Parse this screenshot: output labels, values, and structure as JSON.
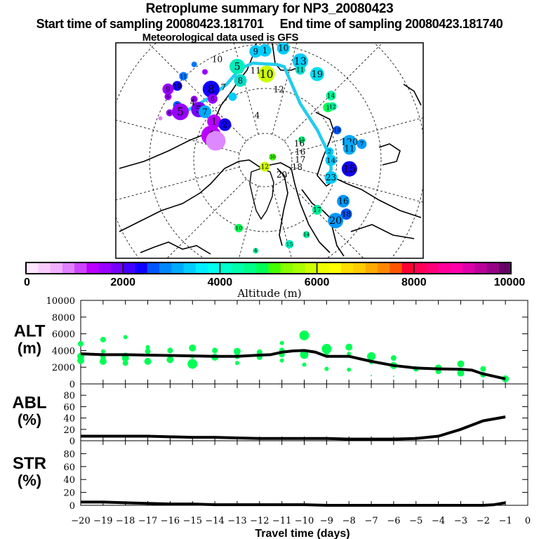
{
  "header": {
    "title": "Retroplume summary for NP3_20080423",
    "start_label": "Start time of sampling 20080423.181701",
    "end_label": "End time of sampling 20080423.181740",
    "met_label": "Meteorological data used is GFS"
  },
  "colorbar": {
    "label": "Altitude (m)",
    "ticks": [
      "0",
      "2000",
      "4000",
      "6000",
      "8000",
      "10000"
    ],
    "range": [
      0,
      10000
    ],
    "colors": [
      "#ffe6ff",
      "#f8ccff",
      "#f0b0ff",
      "#e080ff",
      "#cc44ff",
      "#bb00ff",
      "#9900ff",
      "#7700ff",
      "#4400ff",
      "#1100ff",
      "#0055ff",
      "#0088ff",
      "#00aaff",
      "#00ccff",
      "#00eeff",
      "#00ffee",
      "#00ffcc",
      "#00ffaa",
      "#00ff88",
      "#00ff55",
      "#44ff00",
      "#88ff00",
      "#aaff00",
      "#ccff00",
      "#eeff00",
      "#ffff00",
      "#ffdd00",
      "#ffcc00",
      "#ffaa00",
      "#ff8800",
      "#ff5500",
      "#ff0033",
      "#ff0055",
      "#ff0077",
      "#ff0099",
      "#ff00aa",
      "#dd00aa",
      "#bb0099",
      "#990088",
      "#660066"
    ]
  },
  "map": {
    "trajectory_color": "#22ccee",
    "labels": [
      {
        "text": "10",
        "ax": 0.33,
        "ay": 0.09
      },
      {
        "text": "11",
        "ax": 0.455,
        "ay": 0.142
      },
      {
        "text": "12",
        "ax": 0.53,
        "ay": 0.23
      },
      {
        "text": "7",
        "ax": 0.35,
        "ay": 0.22
      },
      {
        "text": "4",
        "ax": 0.46,
        "ay": 0.35
      },
      {
        "text": "16",
        "ax": 0.597,
        "ay": 0.48
      },
      {
        "text": "16",
        "ax": 0.6,
        "ay": 0.52
      },
      {
        "text": "17",
        "ax": 0.6,
        "ay": 0.555
      },
      {
        "text": "18",
        "ax": 0.59,
        "ay": 0.59
      },
      {
        "text": "20",
        "ax": 0.54,
        "ay": 0.625
      },
      {
        "text": "4",
        "ax": 0.25,
        "ay": 0.29
      }
    ],
    "markers": [
      {
        "text": "9",
        "x": 0.455,
        "y": 0.04,
        "r": 9,
        "c": "#00ccff"
      },
      {
        "text": "5",
        "x": 0.395,
        "y": 0.11,
        "r": 11,
        "c": "#00eebb"
      },
      {
        "text": "8",
        "x": 0.405,
        "y": 0.175,
        "r": 9,
        "c": "#00ddcc"
      },
      {
        "text": "10",
        "x": 0.49,
        "y": 0.145,
        "r": 12,
        "c": "#ccff00"
      },
      {
        "text": "13",
        "x": 0.6,
        "y": 0.085,
        "r": 11,
        "c": "#00ccff"
      },
      {
        "text": "11",
        "x": 0.6,
        "y": 0.125,
        "r": 7,
        "c": "#00ddcc"
      },
      {
        "text": "19",
        "x": 0.655,
        "y": 0.145,
        "r": 10,
        "c": "#00ddee"
      },
      {
        "text": "14",
        "x": 0.7,
        "y": 0.245,
        "r": 7,
        "c": "#00ff99"
      },
      {
        "text": "1",
        "x": 0.69,
        "y": 0.3,
        "r": 7,
        "c": "#00ff55"
      },
      {
        "text": "12",
        "x": 0.705,
        "y": 0.295,
        "r": 6,
        "c": "#00ee99"
      },
      {
        "text": "19",
        "x": 0.72,
        "y": 0.405,
        "r": 6,
        "c": "#0055ff"
      },
      {
        "text": "15",
        "x": 0.605,
        "y": 0.45,
        "r": 5,
        "c": "#00ff77"
      },
      {
        "text": "120",
        "x": 0.76,
        "y": 0.46,
        "r": 10,
        "c": "#00aaff"
      },
      {
        "text": "11",
        "x": 0.76,
        "y": 0.49,
        "r": 9,
        "c": "#00aaff"
      },
      {
        "text": "7",
        "x": 0.8,
        "y": 0.47,
        "r": 7,
        "c": "#0099ff"
      },
      {
        "text": "2",
        "x": 0.695,
        "y": 0.505,
        "r": 6,
        "c": "#00ccff"
      },
      {
        "text": "14",
        "x": 0.7,
        "y": 0.545,
        "r": 8,
        "c": "#00ccff"
      },
      {
        "text": "15",
        "x": 0.76,
        "y": 0.585,
        "r": 11,
        "c": "#1100ee"
      },
      {
        "text": "23",
        "x": 0.7,
        "y": 0.625,
        "r": 9,
        "c": "#00ccff"
      },
      {
        "text": "16",
        "x": 0.74,
        "y": 0.735,
        "r": 9,
        "c": "#0099ff"
      },
      {
        "text": "17",
        "x": 0.655,
        "y": 0.775,
        "r": 7,
        "c": "#00ee99"
      },
      {
        "text": "18",
        "x": 0.75,
        "y": 0.795,
        "r": 8,
        "c": "#0055ee"
      },
      {
        "text": "20",
        "x": 0.715,
        "y": 0.825,
        "r": 11,
        "c": "#0099ff"
      },
      {
        "text": "14",
        "x": 0.62,
        "y": 0.89,
        "r": 5,
        "c": "#00ee99"
      },
      {
        "text": "15",
        "x": 0.565,
        "y": 0.935,
        "r": 6,
        "c": "#00eebb"
      },
      {
        "text": "4",
        "x": 0.455,
        "y": 0.965,
        "r": 4,
        "c": "#00ee99"
      },
      {
        "text": "10",
        "x": 0.4,
        "y": 0.86,
        "r": 6,
        "c": "#00ff55"
      },
      {
        "text": "30",
        "x": 0.51,
        "y": 0.53,
        "r": 5,
        "c": "#44ff00"
      },
      {
        "text": "12",
        "x": 0.485,
        "y": 0.575,
        "r": 7,
        "c": "#ccff00"
      },
      {
        "text": "10",
        "x": 0.2,
        "y": 0.2,
        "r": 7,
        "c": "#1100ee"
      },
      {
        "text": "11",
        "x": 0.22,
        "y": 0.155,
        "r": 6,
        "c": "#0077ff"
      },
      {
        "text": "9",
        "x": 0.17,
        "y": 0.215,
        "r": 8,
        "c": "#9900ff"
      },
      {
        "text": "6",
        "x": 0.17,
        "y": 0.25,
        "r": 5,
        "c": "#9900ff"
      },
      {
        "text": "7",
        "x": 0.2,
        "y": 0.29,
        "r": 6,
        "c": "#0055ff"
      },
      {
        "text": "5",
        "x": 0.21,
        "y": 0.32,
        "r": 12,
        "c": "#9900ff"
      },
      {
        "text": "6",
        "x": 0.175,
        "y": 0.325,
        "r": 5,
        "c": "#9900ff"
      },
      {
        "text": "6",
        "x": 0.255,
        "y": 0.262,
        "r": 5,
        "c": "#9900ff"
      },
      {
        "text": "8",
        "x": 0.31,
        "y": 0.215,
        "r": 12,
        "c": "#1100ff"
      },
      {
        "text": "6",
        "x": 0.315,
        "y": 0.26,
        "r": 7,
        "c": "#9900ff"
      },
      {
        "text": "5",
        "x": 0.27,
        "y": 0.31,
        "r": 11,
        "c": "#7700ff"
      },
      {
        "text": "7",
        "x": 0.29,
        "y": 0.32,
        "r": 9,
        "c": "#00aaff"
      },
      {
        "text": "1",
        "x": 0.32,
        "y": 0.365,
        "r": 10,
        "c": "#bb00ff"
      },
      {
        "text": "2",
        "x": 0.355,
        "y": 0.38,
        "r": 9,
        "c": "#1100ee"
      },
      {
        "text": "4",
        "x": 0.31,
        "y": 0.43,
        "r": 14,
        "c": "#bb00ff"
      },
      {
        "text": "",
        "x": 0.325,
        "y": 0.455,
        "r": 14,
        "c": "#dd88ff"
      },
      {
        "text": "",
        "x": 0.255,
        "y": 0.1,
        "r": 4,
        "c": "#0077ff"
      },
      {
        "text": "",
        "x": 0.29,
        "y": 0.135,
        "r": 4,
        "c": "#9900ff"
      },
      {
        "text": "",
        "x": 0.38,
        "y": 0.25,
        "r": 6,
        "c": "#00ccff"
      },
      {
        "text": "",
        "x": 0.145,
        "y": 0.35,
        "r": 3,
        "c": "#e080ff"
      },
      {
        "text": "1",
        "x": 0.485,
        "y": 0.035,
        "r": 9,
        "c": "#00ccff"
      },
      {
        "text": "10",
        "x": 0.545,
        "y": 0.025,
        "r": 9,
        "c": "#00ccff"
      }
    ]
  },
  "chart_data": [
    {
      "type": "scatter+line",
      "panel": "ALT",
      "ylabel": "ALT\n(m)",
      "ylabel_lines": [
        "ALT",
        "(m)"
      ],
      "ylim": [
        0,
        10000
      ],
      "yticks": [
        "0",
        "2000",
        "4000",
        "6000",
        "8000",
        "10000"
      ],
      "xlim": [
        -20,
        0
      ],
      "line": {
        "x": [
          -20,
          -19,
          -18,
          -17,
          -16,
          -15,
          -14,
          -13,
          -12,
          -11.5,
          -11,
          -10.5,
          -10,
          -9.5,
          -9,
          -8,
          -7,
          -6,
          -5,
          -4,
          -3,
          -2.5,
          -2,
          -1
        ],
        "y": [
          3600,
          3500,
          3500,
          3450,
          3400,
          3350,
          3300,
          3300,
          3450,
          3500,
          3800,
          3950,
          4000,
          3800,
          3300,
          3300,
          2700,
          2200,
          1900,
          1800,
          1750,
          1650,
          1200,
          600
        ]
      },
      "points": [
        {
          "x": -20,
          "y": 4800,
          "s": 4
        },
        {
          "x": -20,
          "y": 3300,
          "s": 5
        },
        {
          "x": -20,
          "y": 2800,
          "s": 5
        },
        {
          "x": -19,
          "y": 5300,
          "s": 4
        },
        {
          "x": -19,
          "y": 3900,
          "s": 3
        },
        {
          "x": -19,
          "y": 3300,
          "s": 4
        },
        {
          "x": -19,
          "y": 2700,
          "s": 5
        },
        {
          "x": -18,
          "y": 5600,
          "s": 3
        },
        {
          "x": -18,
          "y": 3400,
          "s": 4
        },
        {
          "x": -18,
          "y": 3100,
          "s": 5
        },
        {
          "x": -18,
          "y": 2500,
          "s": 4
        },
        {
          "x": -17,
          "y": 4400,
          "s": 3
        },
        {
          "x": -17,
          "y": 3900,
          "s": 4
        },
        {
          "x": -17,
          "y": 2700,
          "s": 5
        },
        {
          "x": -16,
          "y": 4000,
          "s": 4
        },
        {
          "x": -16,
          "y": 2900,
          "s": 5
        },
        {
          "x": -15,
          "y": 4300,
          "s": 5
        },
        {
          "x": -15,
          "y": 3300,
          "s": 3
        },
        {
          "x": -15,
          "y": 2400,
          "s": 7
        },
        {
          "x": -14,
          "y": 4000,
          "s": 4
        },
        {
          "x": -14,
          "y": 3200,
          "s": 5
        },
        {
          "x": -13,
          "y": 3900,
          "s": 5
        },
        {
          "x": -13,
          "y": 3300,
          "s": 4
        },
        {
          "x": -13,
          "y": 2500,
          "s": 3
        },
        {
          "x": -12,
          "y": 3800,
          "s": 4
        },
        {
          "x": -12,
          "y": 3200,
          "s": 4
        },
        {
          "x": -11,
          "y": 4900,
          "s": 3
        },
        {
          "x": -11,
          "y": 4000,
          "s": 4
        },
        {
          "x": -11,
          "y": 3500,
          "s": 4
        },
        {
          "x": -11,
          "y": 2800,
          "s": 3
        },
        {
          "x": -10,
          "y": 5800,
          "s": 7
        },
        {
          "x": -10,
          "y": 3500,
          "s": 6
        },
        {
          "x": -10,
          "y": 2300,
          "s": 3
        },
        {
          "x": -9,
          "y": 4200,
          "s": 7
        },
        {
          "x": -9,
          "y": 3600,
          "s": 3
        },
        {
          "x": -9,
          "y": 1800,
          "s": 3
        },
        {
          "x": -8,
          "y": 4400,
          "s": 5
        },
        {
          "x": -8,
          "y": 3600,
          "s": 3
        },
        {
          "x": -8,
          "y": 1700,
          "s": 3
        },
        {
          "x": -7,
          "y": 3300,
          "s": 6
        },
        {
          "x": -7,
          "y": 2600,
          "s": 3
        },
        {
          "x": -7,
          "y": 1000,
          "s": 1
        },
        {
          "x": -6,
          "y": 3100,
          "s": 4
        },
        {
          "x": -6,
          "y": 2200,
          "s": 5
        },
        {
          "x": -6,
          "y": 900,
          "s": 1
        },
        {
          "x": -5,
          "y": 1800,
          "s": 4
        },
        {
          "x": -4,
          "y": 1900,
          "s": 5
        },
        {
          "x": -4,
          "y": 1500,
          "s": 4
        },
        {
          "x": -3,
          "y": 2400,
          "s": 5
        },
        {
          "x": -3,
          "y": 1300,
          "s": 5
        },
        {
          "x": -2,
          "y": 1800,
          "s": 4
        },
        {
          "x": -2,
          "y": 1100,
          "s": 4
        },
        {
          "x": -1,
          "y": 600,
          "s": 5
        }
      ],
      "point_color": "#00ff55"
    },
    {
      "type": "line",
      "panel": "ABL",
      "ylabel_lines": [
        "ABL",
        "(%)"
      ],
      "ylim": [
        0,
        100
      ],
      "yticks": [
        "0",
        "20",
        "40",
        "60",
        "80"
      ],
      "xlim": [
        -20,
        0
      ],
      "x": [
        -20,
        -19,
        -18,
        -17,
        -16,
        -15,
        -14,
        -13,
        -12,
        -11,
        -10,
        -9,
        -8,
        -7,
        -6,
        -5,
        -4,
        -3,
        -2,
        -1
      ],
      "y": [
        8,
        8,
        8,
        8,
        7,
        6,
        6,
        5,
        4,
        4,
        4,
        4,
        3,
        3,
        3,
        4,
        8,
        20,
        35,
        42
      ]
    },
    {
      "type": "line",
      "panel": "STR",
      "ylabel_lines": [
        "STR",
        "(%)"
      ],
      "ylim": [
        0,
        100
      ],
      "yticks": [
        "0",
        "20",
        "40",
        "60",
        "80"
      ],
      "xlim": [
        -20,
        0
      ],
      "x": [
        -20,
        -19,
        -18,
        -17,
        -16,
        -15,
        -14,
        -13,
        -12,
        -11,
        -10,
        -9,
        -8,
        -7,
        -6,
        -5,
        -4,
        -3,
        -2,
        -1.5,
        -1
      ],
      "y": [
        5,
        5,
        4,
        3,
        2,
        2,
        1,
        1,
        1,
        1,
        1,
        0,
        0,
        0,
        0,
        0,
        0,
        0,
        0,
        1,
        4
      ]
    }
  ],
  "xaxis": {
    "label": "Travel time (days)",
    "ticks": [
      "−20",
      "−19",
      "−18",
      "−17",
      "−16",
      "−15",
      "−14",
      "−13",
      "−12",
      "−11",
      "−10",
      "−9",
      "−8",
      "−7",
      "−6",
      "−5",
      "−4",
      "−3",
      "−2",
      "−1",
      "0"
    ]
  }
}
